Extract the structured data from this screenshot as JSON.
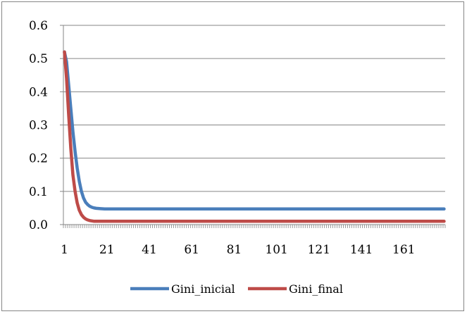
{
  "chart_data": {
    "type": "line",
    "title": "",
    "xlabel": "",
    "ylabel": "",
    "ylim": [
      0,
      0.6
    ],
    "yticks": [
      "0.0",
      "0.1",
      "0.2",
      "0.3",
      "0.4",
      "0.5",
      "0.6"
    ],
    "xlim": [
      1,
      180
    ],
    "xticks": [
      "1",
      "21",
      "41",
      "61",
      "81",
      "101",
      "121",
      "141",
      "161"
    ],
    "grid": "horizontal",
    "legend_position": "bottom",
    "series": [
      {
        "name": "Gini_inicial",
        "color": "#4a7ebb",
        "x": [
          1,
          2,
          3,
          4,
          5,
          6,
          7,
          8,
          9,
          10,
          11,
          12,
          13,
          14,
          15,
          16,
          18,
          20,
          25,
          30,
          40,
          60,
          80,
          100,
          120,
          140,
          160,
          180
        ],
        "y": [
          0.52,
          0.49,
          0.42,
          0.35,
          0.28,
          0.22,
          0.17,
          0.13,
          0.1,
          0.08,
          0.067,
          0.06,
          0.055,
          0.052,
          0.05,
          0.049,
          0.048,
          0.047,
          0.047,
          0.047,
          0.047,
          0.047,
          0.047,
          0.047,
          0.047,
          0.047,
          0.047,
          0.047
        ]
      },
      {
        "name": "Gini_final",
        "color": "#be4b48",
        "x": [
          1,
          2,
          3,
          4,
          5,
          6,
          7,
          8,
          9,
          10,
          11,
          12,
          13,
          14,
          15,
          16,
          18,
          20,
          25,
          30,
          40,
          60,
          80,
          100,
          120,
          140,
          160,
          180
        ],
        "y": [
          0.52,
          0.44,
          0.33,
          0.23,
          0.15,
          0.1,
          0.065,
          0.043,
          0.03,
          0.022,
          0.017,
          0.014,
          0.012,
          0.011,
          0.01,
          0.01,
          0.01,
          0.01,
          0.01,
          0.01,
          0.01,
          0.01,
          0.01,
          0.01,
          0.01,
          0.01,
          0.01,
          0.01
        ]
      }
    ]
  },
  "legend": {
    "items": [
      "Gini_inicial",
      "Gini_final"
    ]
  }
}
